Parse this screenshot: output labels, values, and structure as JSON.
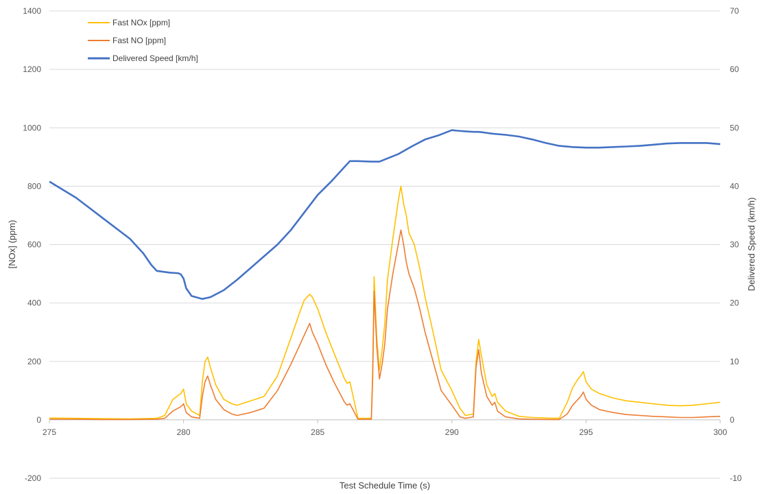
{
  "chart_data": {
    "type": "line",
    "xlabel": "Test Schedule Time (s)",
    "ylabel": "[NOx] (ppm)",
    "y2label": "Delivered Speed (km/h)",
    "xlim": [
      275,
      300
    ],
    "ylim": [
      -200,
      1400
    ],
    "y2lim": [
      -10,
      70
    ],
    "xticks": [
      275,
      280,
      285,
      290,
      295,
      300
    ],
    "yticks": [
      -200,
      0,
      200,
      400,
      600,
      800,
      1000,
      1200,
      1400
    ],
    "y2ticks": [
      -10,
      0,
      10,
      20,
      30,
      40,
      50,
      60,
      70
    ],
    "grid": true,
    "legend_position": "top-left",
    "colors": {
      "nox": "#ffc000",
      "no": "#ed7d31",
      "speed": "#4472c4",
      "grid": "#d9d9d9"
    },
    "series": [
      {
        "name": "Fast NOx [ppm]",
        "axis": "left",
        "x": [
          275,
          276,
          277,
          278,
          279,
          279.3,
          279.6,
          279.9,
          280.0,
          280.1,
          280.3,
          280.6,
          280.7,
          280.8,
          280.9,
          281.0,
          281.2,
          281.5,
          281.8,
          282.0,
          282.5,
          283.0,
          283.5,
          284.0,
          284.3,
          284.5,
          284.7,
          284.8,
          285.0,
          285.3,
          285.6,
          286.0,
          286.1,
          286.2,
          286.5,
          287.0,
          287.05,
          287.1,
          287.2,
          287.3,
          287.4,
          287.5,
          287.6,
          287.8,
          288.0,
          288.1,
          288.2,
          288.3,
          288.4,
          288.6,
          288.8,
          289.0,
          289.3,
          289.6,
          290.0,
          290.3,
          290.5,
          290.8,
          290.9,
          291.0,
          291.1,
          291.3,
          291.5,
          291.6,
          291.7,
          292.0,
          292.5,
          293.0,
          293.5,
          294.0,
          294.3,
          294.5,
          294.7,
          294.8,
          294.9,
          295.0,
          295.2,
          295.5,
          296.0,
          296.5,
          297.0,
          297.5,
          298.0,
          298.5,
          299.0,
          299.5,
          300.0
        ],
        "values": [
          6,
          5,
          4,
          3,
          5,
          15,
          70,
          90,
          105,
          55,
          30,
          15,
          130,
          200,
          215,
          180,
          120,
          70,
          55,
          50,
          65,
          80,
          150,
          280,
          360,
          410,
          430,
          420,
          380,
          300,
          230,
          140,
          125,
          130,
          5,
          5,
          180,
          490,
          280,
          170,
          240,
          330,
          480,
          620,
          750,
          800,
          740,
          700,
          640,
          600,
          520,
          420,
          300,
          170,
          100,
          40,
          15,
          20,
          200,
          275,
          220,
          120,
          80,
          90,
          60,
          30,
          12,
          8,
          6,
          5,
          60,
          110,
          140,
          150,
          165,
          130,
          105,
          90,
          75,
          65,
          60,
          55,
          50,
          48,
          50,
          55,
          60
        ]
      },
      {
        "name": "Fast NO [ppm]",
        "axis": "left",
        "x": [
          275,
          276,
          277,
          278,
          279,
          279.3,
          279.6,
          279.9,
          280.0,
          280.1,
          280.3,
          280.6,
          280.7,
          280.8,
          280.9,
          281.0,
          281.2,
          281.5,
          281.8,
          282.0,
          282.5,
          283.0,
          283.5,
          284.0,
          284.3,
          284.5,
          284.7,
          284.8,
          285.0,
          285.3,
          285.6,
          286.0,
          286.1,
          286.2,
          286.5,
          287.0,
          287.05,
          287.1,
          287.2,
          287.3,
          287.4,
          287.5,
          287.6,
          287.8,
          288.0,
          288.1,
          288.2,
          288.3,
          288.4,
          288.6,
          288.8,
          289.0,
          289.3,
          289.6,
          290.0,
          290.3,
          290.5,
          290.8,
          290.9,
          291.0,
          291.1,
          291.3,
          291.5,
          291.6,
          291.7,
          292.0,
          292.5,
          293.0,
          293.5,
          294.0,
          294.3,
          294.5,
          294.7,
          294.8,
          294.9,
          295.0,
          295.2,
          295.5,
          296.0,
          296.5,
          297.0,
          297.5,
          298.0,
          298.5,
          299.0,
          299.5,
          300.0
        ],
        "values": [
          2,
          2,
          1,
          1,
          2,
          5,
          30,
          45,
          55,
          25,
          10,
          5,
          80,
          130,
          150,
          120,
          70,
          35,
          20,
          15,
          25,
          40,
          100,
          190,
          250,
          290,
          330,
          300,
          260,
          190,
          130,
          60,
          50,
          55,
          2,
          2,
          150,
          440,
          250,
          140,
          190,
          260,
          380,
          500,
          600,
          650,
          600,
          540,
          500,
          450,
          380,
          300,
          200,
          100,
          50,
          10,
          5,
          10,
          180,
          240,
          160,
          80,
          50,
          60,
          30,
          10,
          3,
          2,
          1,
          1,
          20,
          50,
          70,
          80,
          95,
          70,
          50,
          35,
          25,
          18,
          15,
          12,
          10,
          8,
          8,
          10,
          12
        ]
      },
      {
        "name": "Delivered Speed [km/h]",
        "axis": "right",
        "x": [
          275,
          276,
          277,
          278,
          278.5,
          278.8,
          279,
          279.5,
          279.8,
          279.9,
          280.0,
          280.1,
          280.3,
          280.7,
          281.0,
          281.5,
          282.0,
          282.5,
          283.0,
          283.5,
          284.0,
          284.5,
          285.0,
          285.5,
          286.0,
          286.2,
          286.5,
          287.0,
          287.3,
          288.0,
          288.5,
          289.0,
          289.5,
          290.0,
          290.2,
          290.5,
          290.8,
          291.0,
          291.2,
          291.5,
          292.0,
          292.5,
          293.0,
          293.5,
          294.0,
          294.5,
          295.0,
          295.5,
          296.0,
          296.5,
          297.0,
          297.5,
          298.0,
          298.5,
          299.0,
          299.5,
          300.0
        ],
        "values": [
          40.8,
          38,
          34.5,
          31,
          28.5,
          26.5,
          25.5,
          25.2,
          25.1,
          24.9,
          24.2,
          22.5,
          21.2,
          20.7,
          21,
          22.2,
          24,
          26,
          28,
          30,
          32.5,
          35.5,
          38.5,
          40.8,
          43.3,
          44.3,
          44.3,
          44.2,
          44.2,
          45.5,
          46.8,
          48,
          48.7,
          49.6,
          49.5,
          49.4,
          49.3,
          49.3,
          49.2,
          49,
          48.8,
          48.5,
          48.0,
          47.4,
          46.9,
          46.7,
          46.6,
          46.6,
          46.7,
          46.8,
          46.9,
          47.1,
          47.3,
          47.4,
          47.4,
          47.4,
          47.2
        ]
      }
    ]
  }
}
